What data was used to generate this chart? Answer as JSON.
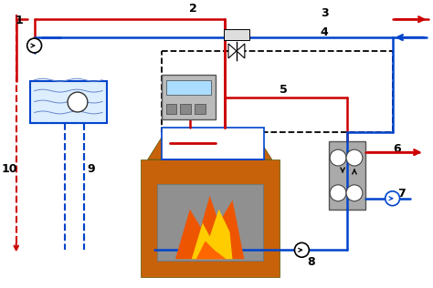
{
  "fig_width": 4.74,
  "fig_height": 3.16,
  "dpi": 100,
  "bg_color": "#ffffff",
  "red_color": "#cc0000",
  "blue_color": "#0044cc",
  "dashed_black": "#000000",
  "boiler_color": "#c8620a",
  "boiler_dark": "#a04800",
  "tank_fill": "#ddeeff",
  "tank_border": "#0044cc",
  "gray_fill": "#aaaaaa",
  "gray_dark": "#666666"
}
